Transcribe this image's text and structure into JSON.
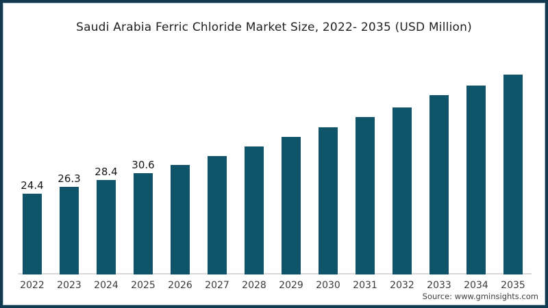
{
  "chart": {
    "title": "Saudi Arabia Ferric Chloride Market Size, 2022- 2035 (USD Million)"
  },
  "source": {
    "label": "Source: www.gminsights.com"
  },
  "colors": {
    "background": "#ffffff",
    "border": "#11394f",
    "bar": "#0f5468",
    "axis_line": "#d8d8d8",
    "title_text": "#1f1f1f",
    "label_text": "#141414",
    "tick_text": "#3a3a3a",
    "source_text": "#3d3d3d"
  },
  "chart_data": {
    "type": "bar",
    "title": "Saudi Arabia Ferric Chloride Market Size, 2022- 2035 (USD Million)",
    "categories": [
      "2022",
      "2023",
      "2024",
      "2025",
      "2026",
      "2027",
      "2028",
      "2029",
      "2030",
      "2031",
      "2032",
      "2033",
      "2034",
      "2035"
    ],
    "values": [
      24.4,
      26.3,
      28.4,
      30.6,
      33.0,
      35.6,
      38.6,
      41.4,
      44.3,
      47.4,
      50.3,
      54.0,
      57.0,
      60.2
    ],
    "value_labels": [
      "24.4",
      "26.3",
      "28.4",
      "30.6",
      "",
      "",
      "",
      "",
      "",
      "",
      "",
      "",
      "",
      ""
    ],
    "xlabel": "",
    "ylabel": "",
    "ylim": [
      0,
      65
    ],
    "grid": false,
    "legend": false,
    "source": "Source: www.gminsights.com"
  }
}
